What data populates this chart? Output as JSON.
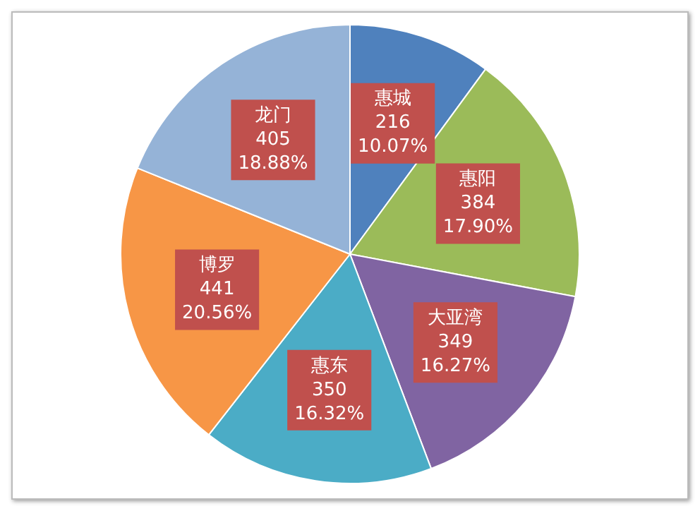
{
  "chart_data": {
    "type": "pie",
    "categories": [
      "惠城",
      "惠阳",
      "大亚湾",
      "惠东",
      "博罗",
      "龙门"
    ],
    "values": [
      216,
      384,
      349,
      350,
      441,
      405
    ],
    "colors": [
      "#4f81bd",
      "#9bbb59",
      "#8064a2",
      "#4bacc6",
      "#f79646",
      "#95b3d7"
    ],
    "value_labels": [
      "216\n10.07%",
      "384\n17.90%",
      "349\n16.27%",
      "350\n16.32%",
      "441\n20.56%",
      "405\n18.88%"
    ],
    "legend": false
  }
}
